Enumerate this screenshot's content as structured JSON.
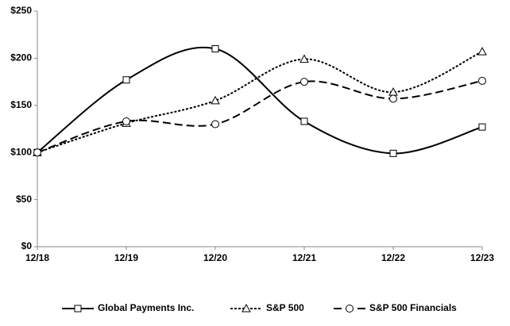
{
  "chart_data": {
    "type": "line",
    "categories": [
      "12/18",
      "12/19",
      "12/20",
      "12/21",
      "12/22",
      "12/23"
    ],
    "series": [
      {
        "name": "Global Payments Inc.",
        "color": "#000000",
        "values": [
          100,
          177,
          210,
          133,
          99,
          127
        ]
      },
      {
        "name": "S&P 500",
        "color": "#000000",
        "values": [
          100,
          131,
          155,
          199,
          164,
          207
        ]
      },
      {
        "name": "S&P 500 Financials",
        "color": "#000000",
        "values": [
          100,
          133,
          130,
          175,
          157,
          176
        ]
      }
    ],
    "ylim": [
      0,
      250
    ],
    "yticks": [
      {
        "value": 0,
        "label": "$0"
      },
      {
        "value": 50,
        "label": "$50"
      },
      {
        "value": 100,
        "label": "$100"
      },
      {
        "value": 150,
        "label": "$150"
      },
      {
        "value": 200,
        "label": "$200"
      },
      {
        "value": 250,
        "label": "$250"
      }
    ],
    "grid": false,
    "legend": "bottom"
  }
}
